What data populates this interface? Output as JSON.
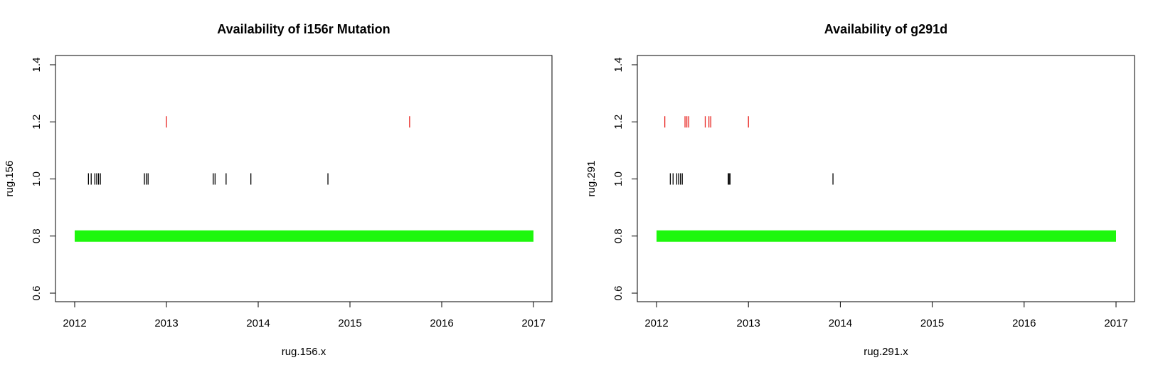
{
  "chart_data": [
    {
      "type": "scatter",
      "title": "Availability of i156r Mutation",
      "xlabel": "rug.156.x",
      "ylabel": "rug.156",
      "xlim": [
        2012,
        2017
      ],
      "ylim": [
        0.6,
        1.4
      ],
      "x_ticks": [
        "2012",
        "2013",
        "2014",
        "2015",
        "2016",
        "2017"
      ],
      "y_ticks": [
        "0.6",
        "0.8",
        "1.0",
        "1.2",
        "1.4"
      ],
      "grid": false,
      "series": [
        {
          "y": 1.2,
          "color": "#e8231f",
          "x": [
            2013.0,
            2015.65
          ]
        },
        {
          "y": 1.0,
          "color": "#000000",
          "x": [
            2012.15,
            2012.18,
            2012.22,
            2012.24,
            2012.26,
            2012.28,
            2012.76,
            2012.78,
            2012.8,
            2013.51,
            2013.53,
            2013.65,
            2013.92,
            2014.76
          ]
        },
        {
          "y": 0.8,
          "color": "#1ef70d",
          "x_range": [
            2012,
            2017
          ]
        }
      ]
    },
    {
      "type": "scatter",
      "title": "Availability of g291d",
      "xlabel": "rug.291.x",
      "ylabel": "rug.291",
      "xlim": [
        2012,
        2017
      ],
      "ylim": [
        0.6,
        1.4
      ],
      "x_ticks": [
        "2012",
        "2013",
        "2014",
        "2015",
        "2016",
        "2017"
      ],
      "y_ticks": [
        "0.6",
        "0.8",
        "1.0",
        "1.2",
        "1.4"
      ],
      "grid": false,
      "series": [
        {
          "y": 1.2,
          "color": "#e8231f",
          "x": [
            2012.09,
            2012.31,
            2012.33,
            2012.35,
            2012.53,
            2012.57,
            2012.59,
            2013.0
          ]
        },
        {
          "y": 1.0,
          "color": "#000000",
          "x": [
            2012.15,
            2012.18,
            2012.22,
            2012.24,
            2012.26,
            2012.28,
            2012.78,
            2012.79,
            2012.8,
            2013.92
          ]
        },
        {
          "y": 0.8,
          "color": "#1ef70d",
          "x_range": [
            2012,
            2017
          ]
        }
      ]
    }
  ]
}
